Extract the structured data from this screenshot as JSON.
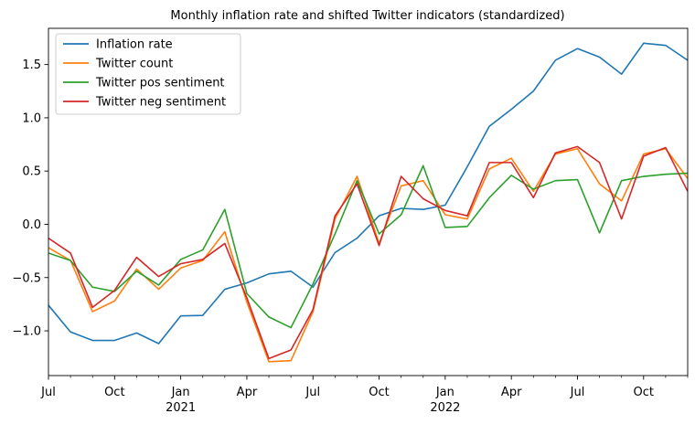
{
  "chart_data": {
    "type": "line",
    "title": "Monthly inflation rate and shifted Twitter indicators (standardized)",
    "xlabel": "",
    "ylabel": "",
    "x": [
      "2020-07",
      "2020-08",
      "2020-09",
      "2020-10",
      "2020-11",
      "2020-12",
      "2021-01",
      "2021-02",
      "2021-03",
      "2021-04",
      "2021-05",
      "2021-06",
      "2021-07",
      "2021-08",
      "2021-09",
      "2021-10",
      "2021-11",
      "2021-12",
      "2022-01",
      "2022-02",
      "2022-03",
      "2022-04",
      "2022-05",
      "2022-06",
      "2022-07",
      "2022-08",
      "2022-09",
      "2022-10",
      "2022-11",
      "2022-12"
    ],
    "xlim": [
      "2020-07",
      "2022-12"
    ],
    "ylim": [
      -1.42,
      1.84
    ],
    "x_major_ticks": [
      {
        "date": "2020-07",
        "label": "Jul",
        "sublabel": ""
      },
      {
        "date": "2020-10",
        "label": "Oct",
        "sublabel": ""
      },
      {
        "date": "2021-01",
        "label": "Jan",
        "sublabel": "2021"
      },
      {
        "date": "2021-04",
        "label": "Apr",
        "sublabel": ""
      },
      {
        "date": "2021-07",
        "label": "Jul",
        "sublabel": ""
      },
      {
        "date": "2021-10",
        "label": "Oct",
        "sublabel": ""
      },
      {
        "date": "2022-01",
        "label": "Jan",
        "sublabel": "2022"
      },
      {
        "date": "2022-04",
        "label": "Apr",
        "sublabel": ""
      },
      {
        "date": "2022-07",
        "label": "Jul",
        "sublabel": ""
      },
      {
        "date": "2022-10",
        "label": "Oct",
        "sublabel": ""
      }
    ],
    "y_ticks": [
      {
        "value": -1.0,
        "label": "−1.0"
      },
      {
        "value": -0.5,
        "label": "−0.5"
      },
      {
        "value": 0.0,
        "label": "0.0"
      },
      {
        "value": 0.5,
        "label": "0.5"
      },
      {
        "value": 1.0,
        "label": "1.0"
      },
      {
        "value": 1.5,
        "label": "1.5"
      }
    ],
    "grid": false,
    "legend_position": "top-left",
    "series": [
      {
        "name": "Inflation rate",
        "color": "#1f77b4",
        "values": [
          -0.76,
          -1.01,
          -1.09,
          -1.09,
          -1.02,
          -1.12,
          -0.86,
          -0.855,
          -0.61,
          -0.55,
          -0.465,
          -0.44,
          -0.59,
          -0.265,
          -0.13,
          0.08,
          0.15,
          0.14,
          0.18,
          0.54,
          0.92,
          1.08,
          1.25,
          1.54,
          1.65,
          1.57,
          1.41,
          1.7,
          1.68,
          1.54
        ]
      },
      {
        "name": "Twitter count",
        "color": "#ff7f0e",
        "values": [
          -0.22,
          -0.34,
          -0.82,
          -0.72,
          -0.42,
          -0.61,
          -0.41,
          -0.34,
          -0.07,
          -0.73,
          -1.29,
          -1.28,
          -0.82,
          0.05,
          0.45,
          -0.18,
          0.36,
          0.41,
          0.09,
          0.05,
          0.52,
          0.62,
          0.31,
          0.66,
          0.71,
          0.38,
          0.22,
          0.66,
          0.71,
          0.43
        ]
      },
      {
        "name": "Twitter pos sentiment",
        "color": "#2ca02c",
        "values": [
          -0.27,
          -0.34,
          -0.59,
          -0.63,
          -0.44,
          -0.57,
          -0.33,
          -0.24,
          0.14,
          -0.65,
          -0.87,
          -0.97,
          -0.56,
          -0.09,
          0.41,
          -0.09,
          0.09,
          0.55,
          -0.03,
          -0.02,
          0.25,
          0.46,
          0.33,
          0.41,
          0.42,
          -0.08,
          0.41,
          0.45,
          0.47,
          0.48
        ]
      },
      {
        "name": "Twitter neg sentiment",
        "color": "#d62728",
        "values": [
          -0.13,
          -0.27,
          -0.78,
          -0.62,
          -0.31,
          -0.49,
          -0.37,
          -0.33,
          -0.18,
          -0.69,
          -1.26,
          -1.18,
          -0.8,
          0.08,
          0.38,
          -0.2,
          0.45,
          0.24,
          0.13,
          0.08,
          0.58,
          0.58,
          0.25,
          0.67,
          0.73,
          0.58,
          0.05,
          0.64,
          0.72,
          0.31
        ]
      }
    ]
  }
}
